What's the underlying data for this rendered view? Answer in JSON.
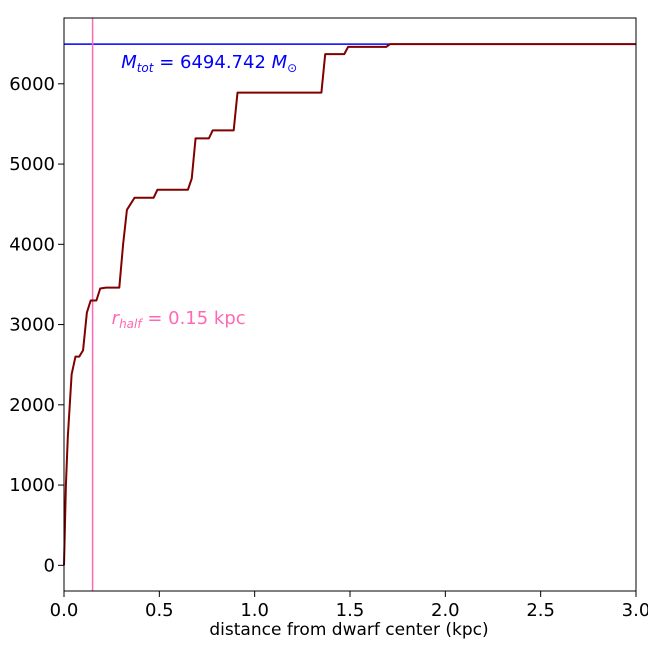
{
  "chart_data": {
    "type": "line",
    "xlabel": "distance from dwarf center (kpc)",
    "ylabel": "",
    "xlim": [
      0.0,
      3.0
    ],
    "ylim": [
      -320,
      6820
    ],
    "x_ticks": [
      "0.0",
      "0.5",
      "1.0",
      "1.5",
      "2.0",
      "2.5",
      "3.0"
    ],
    "y_ticks": [
      "0",
      "1000",
      "2000",
      "3000",
      "4000",
      "5000",
      "6000"
    ],
    "grid": false,
    "series": [
      {
        "color": "#800000",
        "points": [
          [
            0.0,
            0
          ],
          [
            0.01,
            1000
          ],
          [
            0.02,
            1600
          ],
          [
            0.04,
            2380
          ],
          [
            0.06,
            2600
          ],
          [
            0.08,
            2600
          ],
          [
            0.1,
            2680
          ],
          [
            0.12,
            3150
          ],
          [
            0.14,
            3300
          ],
          [
            0.17,
            3300
          ],
          [
            0.19,
            3450
          ],
          [
            0.22,
            3460
          ],
          [
            0.29,
            3460
          ],
          [
            0.31,
            4000
          ],
          [
            0.33,
            4430
          ],
          [
            0.37,
            4580
          ],
          [
            0.47,
            4580
          ],
          [
            0.49,
            4680
          ],
          [
            0.65,
            4680
          ],
          [
            0.67,
            4820
          ],
          [
            0.69,
            5320
          ],
          [
            0.76,
            5320
          ],
          [
            0.78,
            5420
          ],
          [
            0.89,
            5420
          ],
          [
            0.91,
            5890
          ],
          [
            1.35,
            5890
          ],
          [
            1.37,
            6370
          ],
          [
            1.47,
            6370
          ],
          [
            1.49,
            6460
          ],
          [
            1.69,
            6460
          ],
          [
            1.71,
            6494.742
          ],
          [
            3.0,
            6494.742
          ]
        ]
      }
    ],
    "reference_lines": [
      {
        "orientation": "horizontal",
        "value": 6494.742,
        "color": "#0000ff"
      },
      {
        "orientation": "vertical",
        "value": 0.15,
        "color": "#ff69b4"
      }
    ],
    "annotations": [
      {
        "id": "mtot",
        "main": "M",
        "sub": "tot",
        "text": " = 6494.742 ",
        "tail": "M",
        "tail_sub": "⊙",
        "x": 0.3,
        "y": 6200,
        "color": "#0000ff"
      },
      {
        "id": "rhalf",
        "main": "r",
        "sub": "half",
        "text": " = 0.15 kpc",
        "tail": "",
        "tail_sub": "",
        "x": 0.25,
        "y": 3010,
        "color": "#ff69b4"
      }
    ]
  }
}
